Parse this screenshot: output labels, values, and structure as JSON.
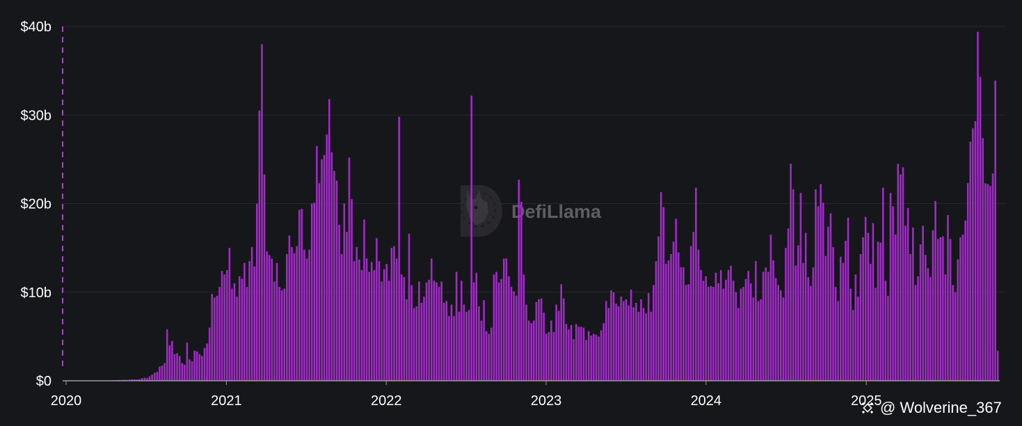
{
  "watermark": {
    "brand": "DefiLlama"
  },
  "credit": {
    "handle": "@ Wolverine_367",
    "icon": "binance-logo-icon"
  },
  "colors": {
    "bar": "#a02bc6",
    "background": "#16171a",
    "grid": "#26272b",
    "axis": "#ffffff",
    "marker": "#b03ad4"
  },
  "chart_data": {
    "type": "bar",
    "title": "",
    "xlabel": "",
    "ylabel": "",
    "y_unit": "$",
    "ylim": [
      0,
      40
    ],
    "y_ticks": [
      {
        "value": 0,
        "label": "$0"
      },
      {
        "value": 10,
        "label": "$10b"
      },
      {
        "value": 20,
        "label": "$20b"
      },
      {
        "value": 30,
        "label": "$30b"
      },
      {
        "value": 40,
        "label": "$40b"
      }
    ],
    "x_ticks": [
      "2020",
      "2021",
      "2022",
      "2023",
      "2024",
      "2025"
    ],
    "x_range": [
      "2020-01-01",
      "2025-10-31"
    ],
    "bar_interval": "weekly",
    "grid": "horizontal",
    "legend": "none",
    "annotations": [
      {
        "type": "vertical-dashed-line",
        "x": "2020-01-01"
      }
    ],
    "series": [
      {
        "values": [
          0.01,
          0.01,
          0.01,
          0.01,
          0.01,
          0.02,
          0.02,
          0.02,
          0.03,
          0.02,
          0.03,
          0.03,
          0.04,
          0.03,
          0.04,
          0.05,
          0.06,
          0.05,
          0.06,
          0.07,
          0.08,
          0.09,
          0.1,
          0.12,
          0.1,
          0.14,
          0.15,
          0.16,
          0.15,
          0.2,
          0.3,
          0.35,
          0.3,
          0.5,
          0.7,
          0.9,
          1.0,
          1.6,
          1.7,
          2.0,
          5.8,
          4.0,
          4.5,
          3.0,
          3.1,
          2.8,
          2.0,
          1.8,
          4.3,
          2.4,
          2.2,
          3.4,
          3.3,
          3.0,
          2.8,
          3.7,
          4.2,
          6.0,
          9.8,
          9.4,
          9.6,
          10.6,
          12.4,
          12.0,
          12.5,
          15.0,
          10.4,
          11.0,
          9.5,
          11.8,
          11.5,
          13.3,
          10.6,
          13.5,
          15.1,
          12.9,
          20.0,
          30.5,
          38.0,
          23.3,
          14.6,
          14.2,
          13.8,
          11.2,
          13.3,
          10.6,
          10.2,
          10.4,
          14.3,
          16.4,
          15.1,
          14.4,
          15.2,
          19.3,
          19.4,
          14.8,
          13.8,
          14.8,
          20.0,
          20.1,
          26.5,
          22.3,
          25.0,
          25.5,
          27.8,
          31.8,
          25.8,
          23.7,
          22.6,
          17.6,
          14.3,
          20.0,
          16.8,
          25.2,
          20.5,
          13.5,
          15.1,
          13.7,
          12.5,
          18.2,
          13.8,
          12.3,
          13.4,
          12.5,
          16.1,
          13.5,
          11.2,
          12.6,
          13.2,
          11.3,
          15.0,
          15.2,
          13.8,
          29.8,
          12.0,
          11.7,
          9.2,
          16.6,
          10.8,
          8.2,
          8.4,
          11.2,
          8.8,
          9.5,
          11.1,
          11.4,
          13.8,
          11.3,
          11.1,
          10.6,
          11.2,
          8.8,
          9.0,
          7.3,
          8.6,
          7.3,
          12.3,
          7.8,
          11.3,
          8.6,
          7.8,
          8.0,
          32.2,
          11.1,
          12.2,
          8.4,
          6.8,
          9.1,
          5.6,
          5.3,
          6.0,
          12.0,
          12.3,
          11.1,
          11.5,
          13.8,
          13.8,
          11.8,
          10.6,
          10.1,
          9.6,
          22.7,
          20.2,
          12.0,
          8.6,
          6.8,
          6.5,
          6.8,
          8.9,
          9.2,
          9.3,
          7.7,
          5.3,
          5.5,
          6.8,
          5.5,
          8.6,
          7.9,
          10.9,
          9.3,
          6.4,
          5.8,
          6.3,
          4.7,
          6.4,
          6.1,
          6.1,
          6.0,
          4.6,
          5.6,
          5.1,
          5.3,
          5.2,
          5.0,
          5.7,
          6.5,
          9.0,
          8.2,
          10.2,
          10.0,
          8.7,
          8.4,
          9.5,
          9.0,
          9.2,
          8.5,
          10.3,
          8.3,
          8.8,
          7.8,
          9.2,
          8.2,
          7.6,
          9.9,
          7.8,
          10.8,
          13.5,
          16.3,
          21.3,
          19.6,
          13.2,
          13.6,
          14.3,
          15.7,
          18.3,
          14.5,
          12.8,
          12.8,
          10.8,
          10.9,
          15.2,
          16.8,
          21.8,
          14.8,
          12.5,
          11.3,
          11.8,
          10.6,
          10.7,
          10.6,
          12.2,
          11.0,
          12.5,
          10.4,
          11.4,
          12.5,
          13.0,
          11.3,
          10.0,
          8.2,
          10.4,
          10.6,
          11.5,
          12.4,
          11.0,
          9.4,
          13.5,
          9.0,
          9.2,
          12.3,
          12.8,
          12.3,
          16.5,
          13.6,
          11.6,
          10.8,
          10.2,
          9.4,
          15.0,
          17.2,
          24.5,
          21.6,
          13.0,
          15.3,
          21.2,
          13.3,
          16.7,
          11.7,
          10.7,
          12.8,
          21.6,
          19.7,
          22.2,
          20.1,
          14.1,
          17.4,
          18.9,
          15.1,
          10.6,
          9.0,
          14.0,
          13.3,
          15.8,
          18.4,
          10.4,
          8.0,
          12.0,
          9.5,
          14.3,
          16.2,
          18.5,
          16.7,
          13.2,
          17.8,
          10.5,
          15.7,
          15.6,
          21.8,
          11.3,
          9.6,
          21.2,
          19.7,
          16.5,
          24.5,
          23.3,
          24.1,
          17.5,
          19.5,
          14.3,
          17.3,
          10.8,
          11.8,
          15.4,
          17.5,
          14.2,
          12.7,
          11.7,
          17.0,
          20.3,
          16.0,
          16.2,
          16.3,
          12.0,
          18.7,
          16.0,
          10.8,
          10.0,
          13.7,
          16.2,
          16.5,
          18.1,
          22.3,
          27.0,
          28.5,
          29.3,
          39.4,
          34.3,
          27.4,
          22.3,
          22.2,
          22.0,
          23.4,
          33.9,
          3.4
        ]
      }
    ]
  }
}
